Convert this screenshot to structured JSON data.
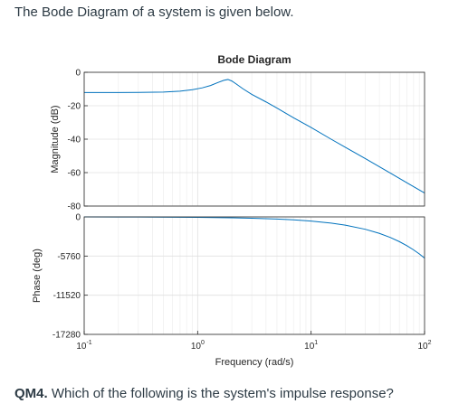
{
  "intro_text": "The Bode Diagram of a system is given below.",
  "question": {
    "label": "QM4.",
    "text": " Which of the following is the system's impulse response?"
  },
  "chart_data": {
    "type": "line",
    "title": "Bode Diagram",
    "xlabel": "Frequency (rad/s)",
    "xscale": "log",
    "xlim": [
      0.1,
      100
    ],
    "x_ticks": [
      {
        "base": "10",
        "exp": "-1",
        "value": 0.1
      },
      {
        "base": "10",
        "exp": "0",
        "value": 1
      },
      {
        "base": "10",
        "exp": "1",
        "value": 10
      },
      {
        "base": "10",
        "exp": "2",
        "value": 100
      }
    ],
    "grid": true,
    "line_color": "#0072bd",
    "panels": [
      {
        "name": "magnitude",
        "ylabel": "Magnitude (dB)",
        "ylim": [
          -80,
          0
        ],
        "y_ticks": [
          0,
          -20,
          -40,
          -60,
          -80
        ],
        "y_tick_labels": [
          "0",
          "-20",
          "-40",
          "-60",
          "-80"
        ],
        "x": [
          0.1,
          0.2,
          0.3,
          0.5,
          0.7,
          0.9,
          1.1,
          1.3,
          1.5,
          1.7,
          1.85,
          2.0,
          2.2,
          2.5,
          3,
          4,
          5,
          7,
          10,
          15,
          20,
          30,
          50,
          70,
          100
        ],
        "y": [
          -12.1,
          -12.1,
          -12.0,
          -11.8,
          -11.3,
          -10.4,
          -9.3,
          -7.9,
          -6.2,
          -4.8,
          -4.3,
          -5.2,
          -7.1,
          -9.8,
          -13.2,
          -17.7,
          -21.4,
          -27.2,
          -33.0,
          -40.0,
          -44.8,
          -51.6,
          -60.3,
          -66.1,
          -72.2
        ]
      },
      {
        "name": "phase",
        "ylabel": "Phase (deg)",
        "ylim": [
          -17280,
          0
        ],
        "y_ticks": [
          0,
          -5760,
          -11520,
          -17280
        ],
        "y_tick_labels": [
          "0",
          "-5760",
          "-11520",
          "-17280"
        ],
        "x": [
          0.1,
          0.3,
          1,
          2,
          3,
          5,
          7,
          10,
          15,
          20,
          30,
          40,
          50,
          60,
          70,
          80,
          90,
          100
        ],
        "y": [
          -6,
          -19,
          -70,
          -140,
          -200,
          -320,
          -440,
          -620,
          -920,
          -1220,
          -1820,
          -2430,
          -3030,
          -3640,
          -4240,
          -4850,
          -5450,
          -6060
        ]
      }
    ]
  }
}
